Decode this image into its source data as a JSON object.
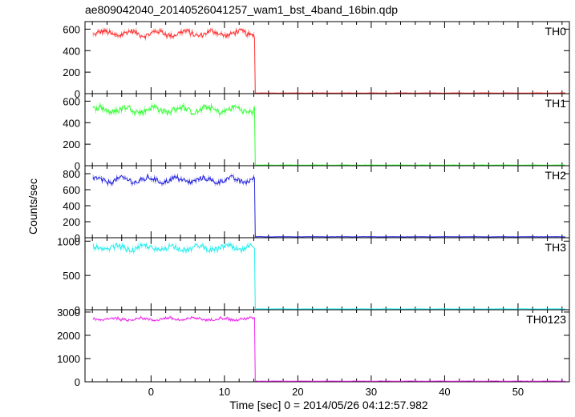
{
  "figure": {
    "title": "ae809042040_20140526041257_wam1_bst_4band_16bin.qdp",
    "ylabel": "Counts/sec",
    "xlabel": "Time [sec] 0 = 2014/05/26 04:12:57.982"
  },
  "chart_data": [
    {
      "type": "line",
      "label": "TH0",
      "color": "#ff2a2a",
      "ylim": [
        0,
        670
      ],
      "yticks": [
        0,
        200,
        400,
        600
      ],
      "xlim": [
        -9,
        57
      ],
      "xticks": [
        0,
        10,
        20,
        30,
        40,
        50
      ],
      "grid": false,
      "segments": [
        {
          "x_start": -7.9,
          "x_end": 14.2,
          "level": 560,
          "noise": 35
        },
        {
          "x_start": 14.2,
          "x_end": 56.5,
          "level": 6,
          "noise": 1.5
        }
      ]
    },
    {
      "type": "line",
      "label": "TH1",
      "color": "#33ff33",
      "ylim": [
        0,
        670
      ],
      "yticks": [
        0,
        200,
        400,
        600
      ],
      "xlim": [
        -9,
        57
      ],
      "xticks": [
        0,
        10,
        20,
        30,
        40,
        50
      ],
      "grid": false,
      "segments": [
        {
          "x_start": -7.9,
          "x_end": 14.2,
          "level": 520,
          "noise": 40
        },
        {
          "x_start": 14.2,
          "x_end": 56.5,
          "level": 6,
          "noise": 1.5
        }
      ]
    },
    {
      "type": "line",
      "label": "TH2",
      "color": "#2222dd",
      "ylim": [
        0,
        900
      ],
      "yticks": [
        0,
        200,
        400,
        600,
        800
      ],
      "xlim": [
        -9,
        57
      ],
      "xticks": [
        0,
        10,
        20,
        30,
        40,
        50
      ],
      "grid": false,
      "segments": [
        {
          "x_start": -7.9,
          "x_end": 14.2,
          "level": 720,
          "noise": 45
        },
        {
          "x_start": 14.2,
          "x_end": 56.5,
          "level": 12,
          "noise": 2
        }
      ]
    },
    {
      "type": "line",
      "label": "TH3",
      "color": "#22eeee",
      "ylim": [
        0,
        1050
      ],
      "yticks": [
        0,
        500,
        1000
      ],
      "xlim": [
        -9,
        57
      ],
      "xticks": [
        0,
        10,
        20,
        30,
        40,
        50
      ],
      "grid": false,
      "segments": [
        {
          "x_start": -7.9,
          "x_end": 14.2,
          "level": 900,
          "noise": 55
        },
        {
          "x_start": 14.2,
          "x_end": 56.5,
          "level": 12,
          "noise": 2
        }
      ]
    },
    {
      "type": "line",
      "label": "TH0123",
      "color": "#ee22ee",
      "ylim": [
        0,
        3100
      ],
      "yticks": [
        0,
        1000,
        2000,
        3000
      ],
      "xlim": [
        -9,
        57
      ],
      "xticks": [
        0,
        10,
        20,
        30,
        40,
        50
      ],
      "grid": false,
      "segments": [
        {
          "x_start": -7.9,
          "x_end": 14.2,
          "level": 2700,
          "noise": 80
        },
        {
          "x_start": 14.2,
          "x_end": 56.5,
          "level": 30,
          "noise": 4
        }
      ]
    }
  ]
}
